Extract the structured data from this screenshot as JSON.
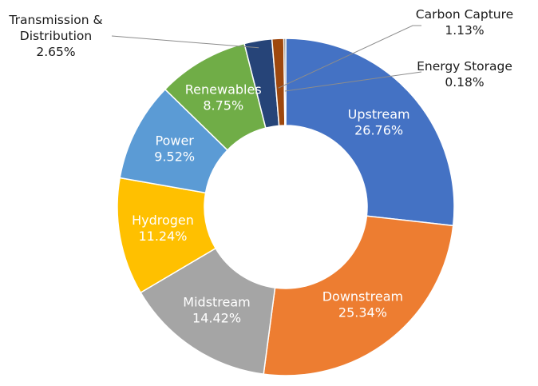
{
  "chart_data": {
    "type": "pie",
    "subtype": "donut",
    "start_angle_deg": 0,
    "direction": "clockwise",
    "grid": false,
    "legend": "none",
    "slices": [
      {
        "name": "Upstream",
        "value": 26.76,
        "label": "26.76%",
        "color": "#4472C4",
        "label_style": "inside"
      },
      {
        "name": "Downstream",
        "value": 25.34,
        "label": "25.34%",
        "color": "#ED7D31",
        "label_style": "inside"
      },
      {
        "name": "Midstream",
        "value": 14.42,
        "label": "14.42%",
        "color": "#A5A5A5",
        "label_style": "inside"
      },
      {
        "name": "Hydrogen",
        "value": 11.24,
        "label": "11.24%",
        "color": "#FFC000",
        "label_style": "inside"
      },
      {
        "name": "Power",
        "value": 9.52,
        "label": "9.52%",
        "color": "#5B9BD5",
        "label_style": "inside"
      },
      {
        "name": "Renewables",
        "value": 8.75,
        "label": "8.75%",
        "color": "#70AD47",
        "label_style": "inside"
      },
      {
        "name_lines": [
          "Transmission &",
          "Distribution"
        ],
        "value": 2.65,
        "label": "2.65%",
        "color": "#264478",
        "label_style": "callout-left"
      },
      {
        "name": "Carbon Capture",
        "value": 1.13,
        "label": "1.13%",
        "color": "#9E480E",
        "label_style": "callout-right-top"
      },
      {
        "name": "Energy Storage",
        "value": 0.18,
        "label": "0.18%",
        "color": "#636363",
        "label_style": "callout-right"
      }
    ]
  }
}
